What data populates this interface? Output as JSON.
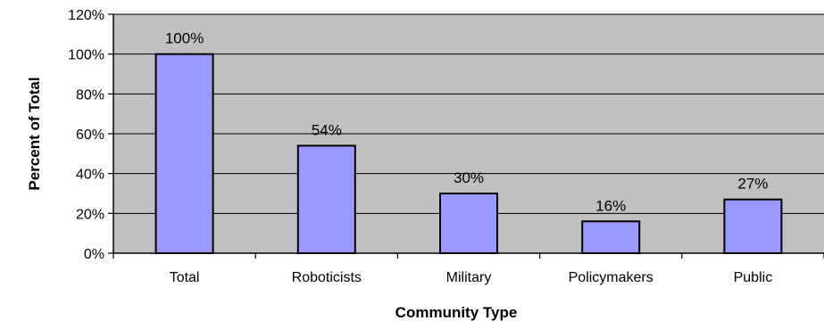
{
  "chart_data": {
    "type": "bar",
    "categories": [
      "Total",
      "Roboticists",
      "Military",
      "Policymakers",
      "Public"
    ],
    "values": [
      100,
      54,
      30,
      16,
      27
    ],
    "data_labels": [
      "100%",
      "54%",
      "30%",
      "16%",
      "27%"
    ],
    "xlabel": "Community Type",
    "ylabel": "Percent of Total",
    "ylim": [
      0,
      120
    ],
    "y_ticks": [
      0,
      20,
      40,
      60,
      80,
      100,
      120
    ],
    "y_tick_labels": [
      "0%",
      "20%",
      "40%",
      "60%",
      "80%",
      "100%",
      "120%"
    ],
    "grid": true,
    "legend": "none",
    "colors": {
      "plot_background": "#c0c0c0",
      "bar_fill": "#9999ff",
      "bar_stroke": "#000000",
      "gridline": "#000000"
    }
  }
}
